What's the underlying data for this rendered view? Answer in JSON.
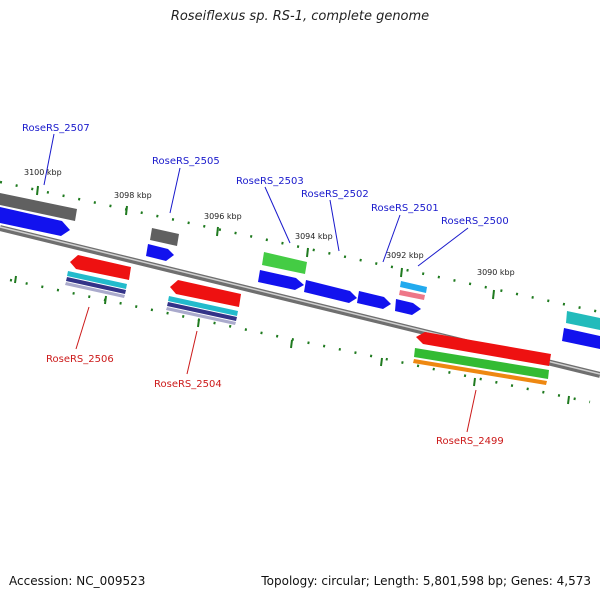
{
  "title": "Roseiflexus sp. RS-1, complete genome",
  "footer": {
    "accession": "Accession: NC_009523",
    "stats": "Topology: circular; Length: 5,801,598 bp; Genes: 4,573"
  },
  "scale_labels": [
    "3100 kbp",
    "3098 kbp",
    "3096 kbp",
    "3094 kbp",
    "3092 kbp",
    "3090 kbp"
  ],
  "gene_labels_top": [
    "RoseRS_2507",
    "RoseRS_2505",
    "RoseRS_2503",
    "RoseRS_2502",
    "RoseRS_2501",
    "RoseRS_2500"
  ],
  "gene_labels_bottom": [
    "RoseRS_2506",
    "RoseRS_2504",
    "RoseRS_2499"
  ],
  "colors": {
    "backbone": "#8a8a8a",
    "tick": "#1f7a1f",
    "forward_label": "#1a1acc",
    "reverse_label": "#cc1a1a",
    "cds": "#1212ee",
    "red": "#ee1111",
    "gray": "#666666",
    "green": "#33bb33",
    "cyan": "#22bbcc",
    "orange": "#ee8811"
  }
}
